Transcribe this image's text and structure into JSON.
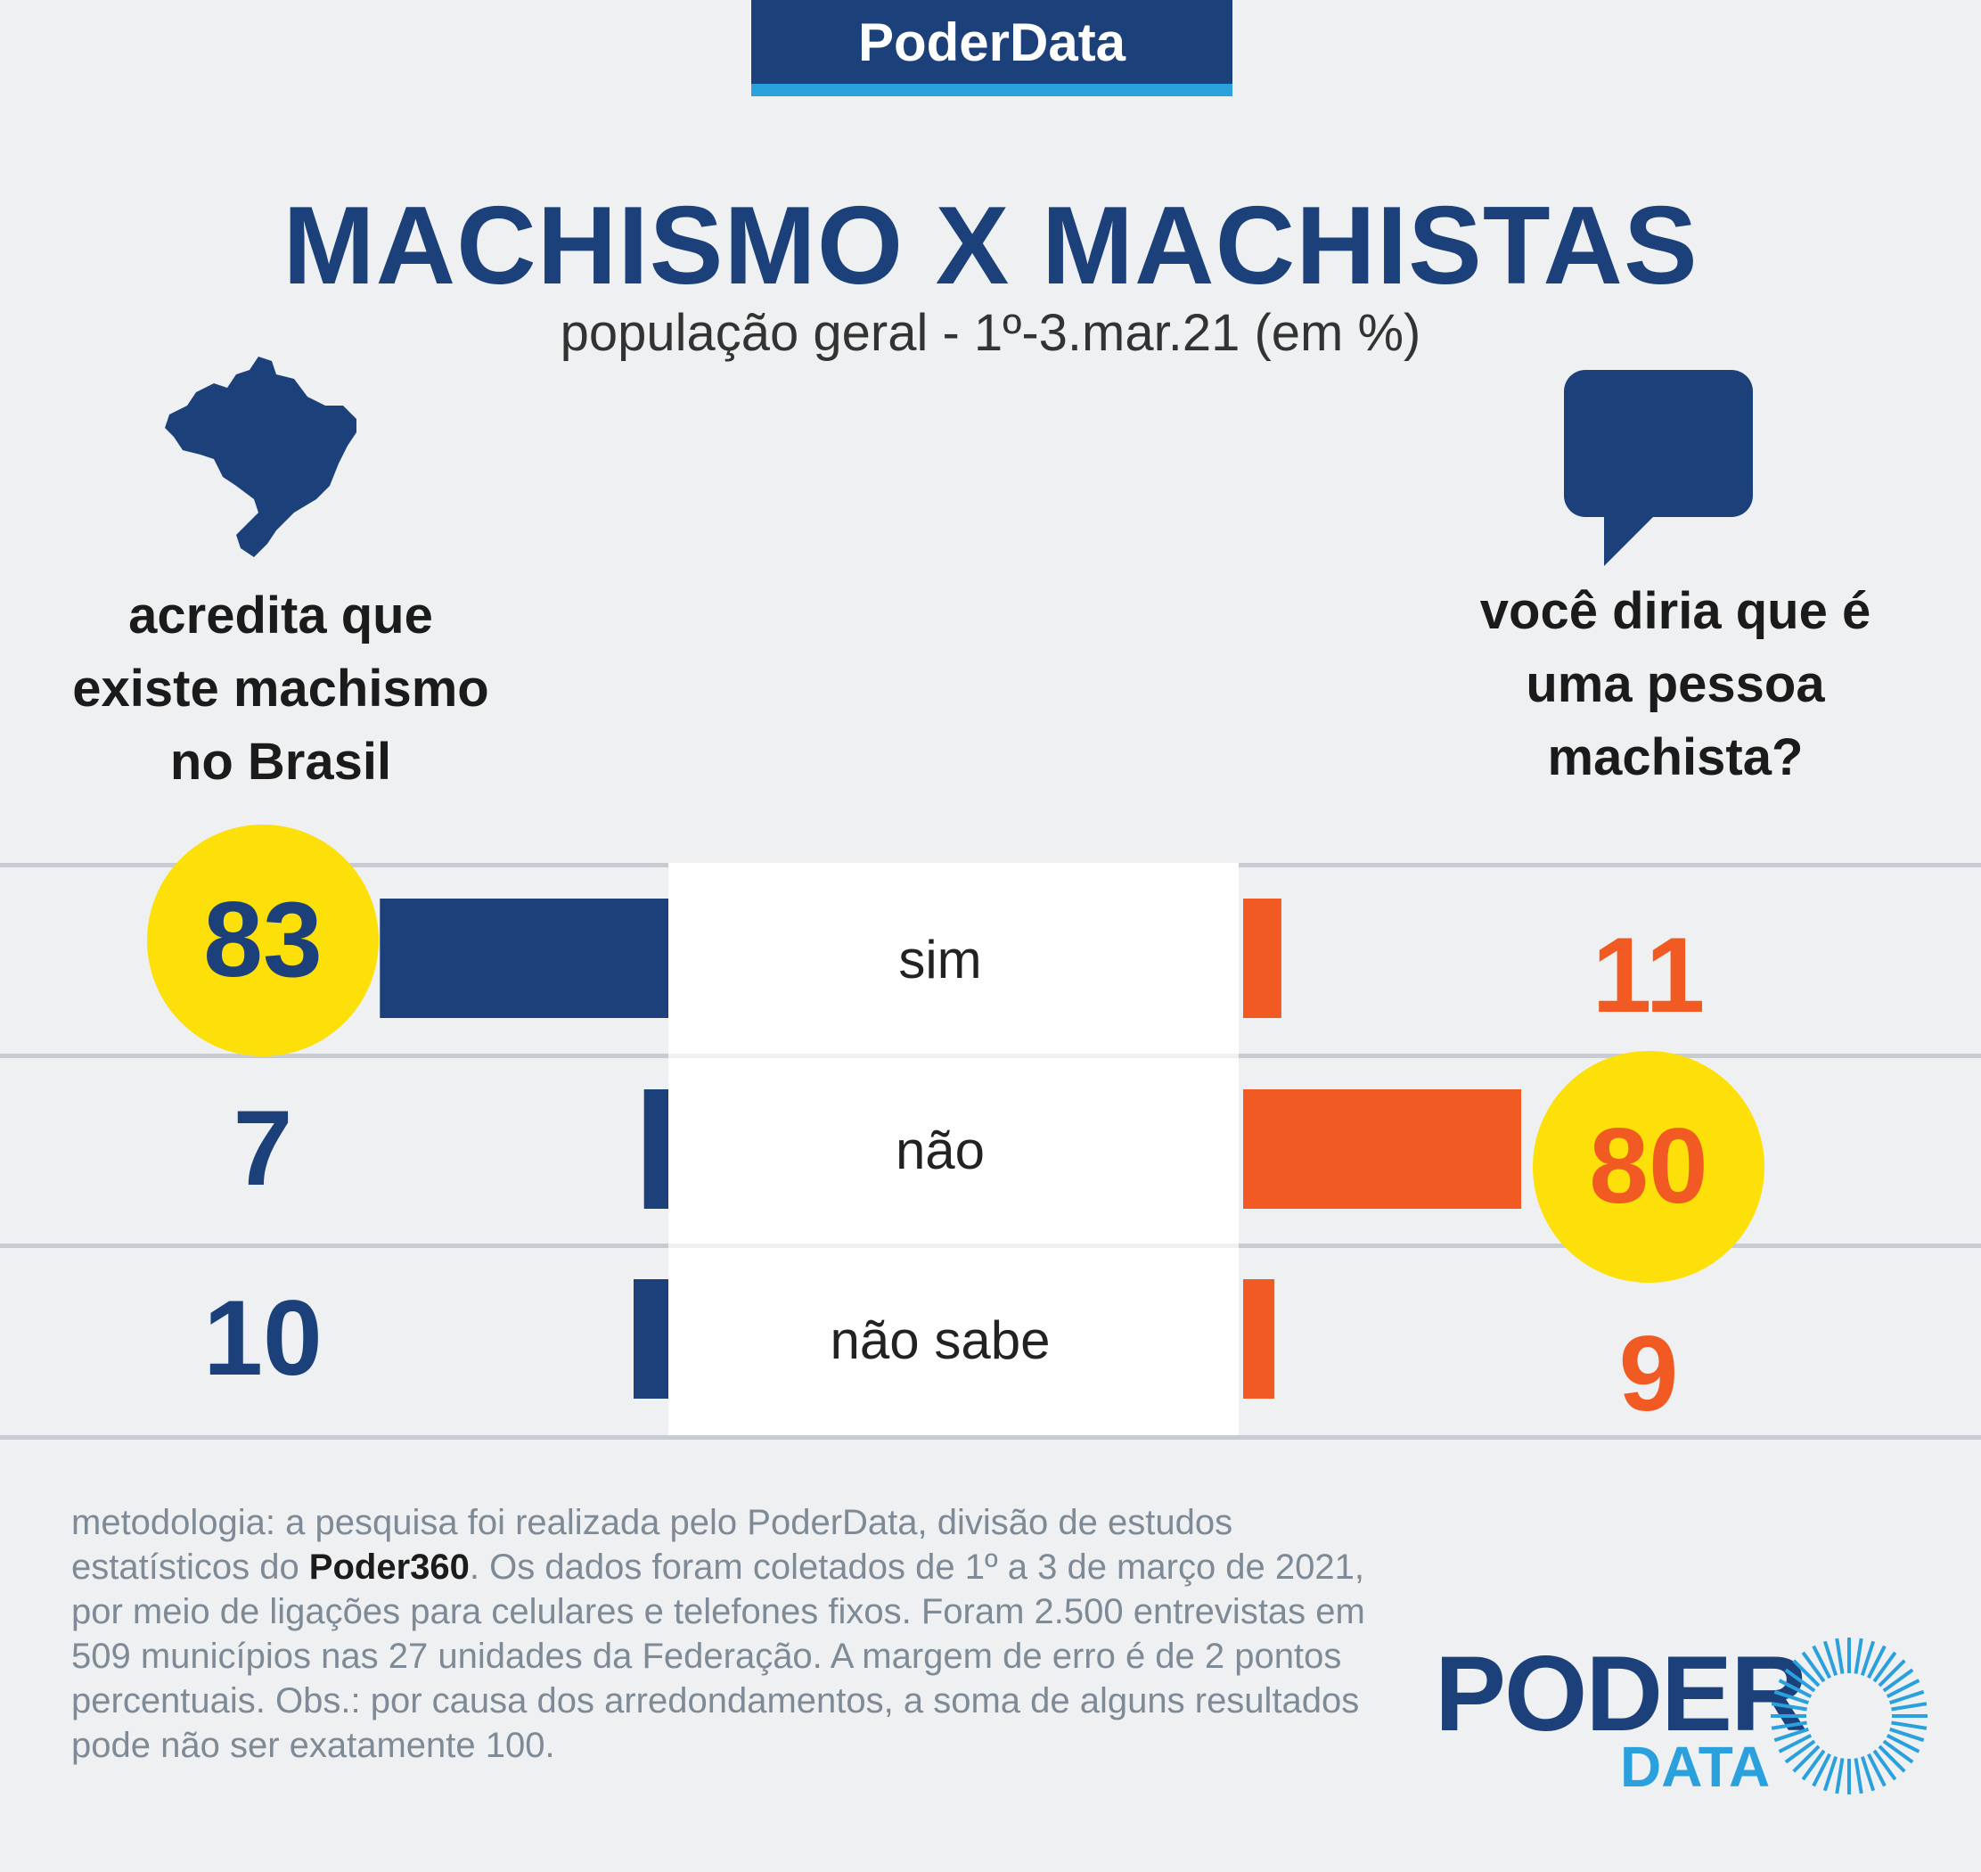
{
  "brand": {
    "tab_label": "PoderData"
  },
  "header": {
    "title": "MACHISMO X MACHISTAS",
    "subtitle": "população geral - 1º-3.mar.21 (em %)"
  },
  "questions": {
    "left": [
      "acredita que",
      "existe machismo",
      "no Brasil"
    ],
    "right": [
      "você diria que é",
      "uma pessoa",
      "machista?"
    ]
  },
  "icons": {
    "left": "brazil-map-icon",
    "right": "speech-bubble-icon"
  },
  "colors": {
    "left_bar": "#1c4079",
    "right_bar": "#f15a22",
    "highlight": "#fde009",
    "center_panel": "#ffffff"
  },
  "chart_data": {
    "type": "bar",
    "categories": [
      "sim",
      "não",
      "não sabe"
    ],
    "series": [
      {
        "values": [
          83,
          7,
          10
        ]
      },
      {
        "values": [
          11,
          80,
          9
        ]
      }
    ],
    "highlighted": [
      0,
      1
    ]
  },
  "methodology": {
    "part1": "metodologia: a pesquisa foi realizada pelo PoderData, divisão de estudos estatísticos do ",
    "bold": "Poder360",
    "part2": ". Os dados foram coletados de 1º a 3 de março de 2021, por meio de ligações para celulares e telefones fixos. Foram 2.500 entrevistas em 509 municípios nas 27 unidades da Federação. A margem de erro é de 2 pontos percentuais. Obs.: por causa dos arredondamentos, a soma de alguns resultados pode não ser exatamente 100."
  },
  "logo": {
    "word1": "PODER",
    "word2": "DATA"
  }
}
